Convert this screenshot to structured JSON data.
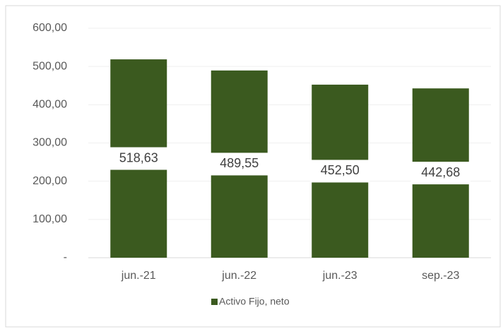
{
  "chart_data": {
    "type": "bar",
    "categories": [
      "jun.-21",
      "jun.-22",
      "jun.-23",
      "sep.-23"
    ],
    "series": [
      {
        "name": "Activo Fijo, neto",
        "color": "#3b5a1f",
        "values": [
          518.63,
          489.55,
          452.5,
          442.68
        ],
        "value_labels": [
          "518,63",
          "489,55",
          "452,50",
          "442,68"
        ]
      }
    ],
    "ylim": [
      0,
      600
    ],
    "yticks": [
      {
        "value": 0,
        "label": "-"
      },
      {
        "value": 100,
        "label": "100,00"
      },
      {
        "value": 200,
        "label": "200,00"
      },
      {
        "value": 300,
        "label": "300,00"
      },
      {
        "value": 400,
        "label": "400,00"
      },
      {
        "value": 500,
        "label": "500,00"
      },
      {
        "value": 600,
        "label": "600,00"
      }
    ],
    "grid": true,
    "legend": "bottom"
  }
}
